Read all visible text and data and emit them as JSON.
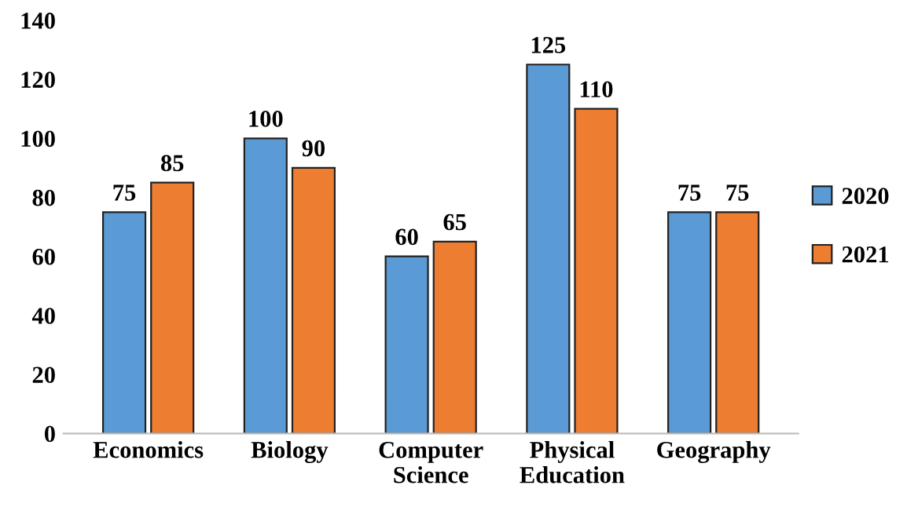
{
  "chart_data": {
    "type": "bar",
    "categories": [
      "Economics",
      "Biology",
      "Computer Science",
      "Physical Education",
      "Geography"
    ],
    "series": [
      {
        "name": "2020",
        "color": "#5b9bd5",
        "values": [
          75,
          100,
          60,
          125,
          75
        ]
      },
      {
        "name": "2021",
        "color": "#ed7d31",
        "values": [
          85,
          90,
          65,
          110,
          75
        ]
      }
    ],
    "ylim": [
      0,
      140
    ],
    "yticks": [
      0,
      20,
      40,
      60,
      80,
      100,
      120,
      140
    ],
    "grid": false,
    "legend": "right",
    "data_labels": true
  }
}
